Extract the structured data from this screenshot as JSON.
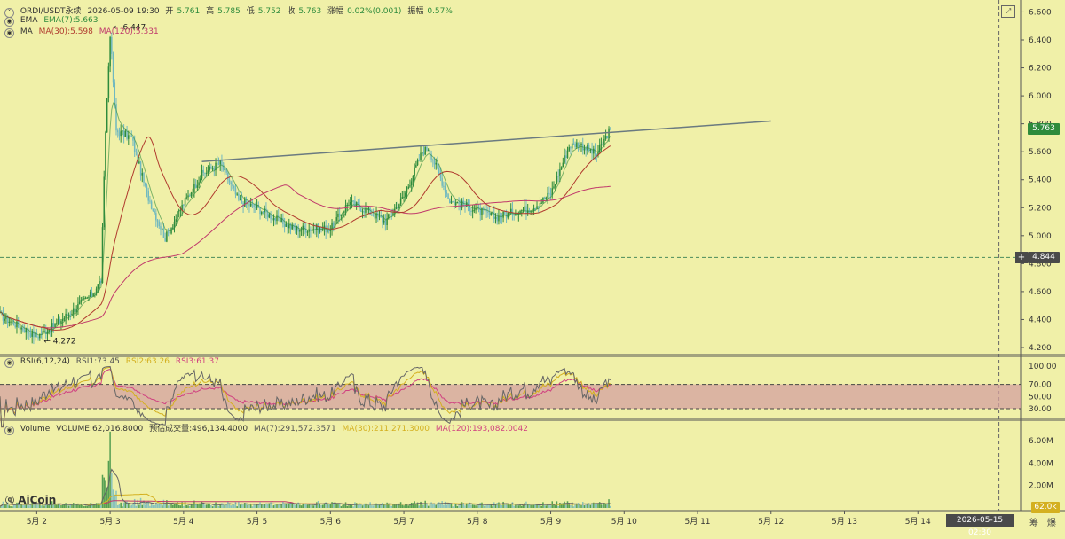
{
  "header": {
    "symbol": "ORDI/USDT永续",
    "datetime": "2026-05-09 19:30",
    "open_label": "开",
    "open": "5.761",
    "high_label": "高",
    "high": "5.785",
    "low_label": "低",
    "low": "5.752",
    "close_label": "收",
    "close": "5.763",
    "change_label": "涨幅",
    "change": "0.02%(0.001)",
    "amplitude_label": "振幅",
    "amplitude": "0.57%"
  },
  "ema_legend": {
    "name": "EMA",
    "ema7": "EMA(7):5.663"
  },
  "ma_legend": {
    "name": "MA",
    "ma30": "MA(30):5.598",
    "ma120": "MA(120):5.331"
  },
  "rsi_legend": {
    "name": "RSI(6,12,24)",
    "rsi1": "RSI1:73.45",
    "rsi2": "RSI2:63.26",
    "rsi3": "RSI3:61.37"
  },
  "volume_legend": {
    "name": "Volume",
    "volume": "VOLUME:62,016.8000",
    "estimated": "预估成交量:496,134.4000",
    "ma7": "MA(7):291,572.3571",
    "ma30": "MA(30):211,271.3000",
    "ma120": "MA(120):193,082.0042"
  },
  "price_axis_ticks": [
    "6.600",
    "6.400",
    "6.200",
    "6.000",
    "5.800",
    "5.600",
    "5.400",
    "5.200",
    "5.000",
    "4.800",
    "4.600",
    "4.400",
    "4.200"
  ],
  "rsi_axis_ticks": [
    "100.00",
    "70.00",
    "50.00",
    "30.00"
  ],
  "volume_axis_ticks": [
    "6.00M",
    "4.00M",
    "2.00M"
  ],
  "current_price_tag": "5.763",
  "crosshair_price_tag": "4.844",
  "volume_tag": "62.0k",
  "x_axis_labels": [
    "5月 2",
    "5月 3",
    "5月 4",
    "5月 5",
    "5月 6",
    "5月 7",
    "5月 8",
    "5月 9",
    "5月 10",
    "5月 11",
    "5月 12",
    "5月 13",
    "5月 14"
  ],
  "crosshair_time": "2026-05-15 02:30",
  "annotations": {
    "high_marker": "6.447",
    "low_marker": "4.272"
  },
  "footer_buttons": [
    "筹",
    "爆"
  ],
  "logo": "AiCoin",
  "colors": {
    "background": "#f0f0a8",
    "up_candle": "#2e8b3c",
    "down_candle": "#6fb8c0",
    "ema7": "#2e8b3c",
    "ma30": "#b03a2e",
    "ma120": "#c0396b",
    "rsi1": "#666666",
    "rsi2": "#d4b020",
    "rsi3": "#d04080",
    "rsi_band": "#d4a0a0",
    "trendline": "#6a7a80",
    "current_price": "#2e8b3c",
    "crosshair_tag": "#4a4a4a"
  },
  "chart_data": {
    "type": "candlestick",
    "interval": "30m",
    "x_range": [
      "2026-05-01 12:00",
      "2026-05-15 09:00"
    ],
    "y_range": [
      4.1,
      6.7
    ],
    "y_scale": "linear",
    "price_path_keypoints": [
      [
        "2026-05-01 12:00",
        4.43
      ],
      [
        "2026-05-02 00:00",
        4.28
      ],
      [
        "2026-05-02 06:00",
        4.36
      ],
      [
        "2026-05-02 18:00",
        4.58
      ],
      [
        "2026-05-02 21:00",
        4.68
      ],
      [
        "2026-05-02 22:30",
        5.75
      ],
      [
        "2026-05-03 00:00",
        6.447
      ],
      [
        "2026-05-03 02:00",
        5.75
      ],
      [
        "2026-05-03 07:00",
        5.7
      ],
      [
        "2026-05-03 12:00",
        5.3
      ],
      [
        "2026-05-03 18:00",
        4.98
      ],
      [
        "2026-05-04 00:00",
        5.23
      ],
      [
        "2026-05-04 06:00",
        5.44
      ],
      [
        "2026-05-04 12:00",
        5.52
      ],
      [
        "2026-05-04 18:00",
        5.25
      ],
      [
        "2026-05-05 00:00",
        5.2
      ],
      [
        "2026-05-05 06:00",
        5.12
      ],
      [
        "2026-05-05 12:00",
        5.05
      ],
      [
        "2026-05-06 00:00",
        5.05
      ],
      [
        "2026-05-06 06:00",
        5.24
      ],
      [
        "2026-05-06 12:00",
        5.18
      ],
      [
        "2026-05-06 18:00",
        5.1
      ],
      [
        "2026-05-07 00:00",
        5.28
      ],
      [
        "2026-05-07 06:00",
        5.6
      ],
      [
        "2026-05-07 08:00",
        5.63
      ],
      [
        "2026-05-07 15:00",
        5.25
      ],
      [
        "2026-05-07 22:00",
        5.2
      ],
      [
        "2026-05-08 06:00",
        5.13
      ],
      [
        "2026-05-08 12:00",
        5.17
      ],
      [
        "2026-05-08 18:00",
        5.2
      ],
      [
        "2026-05-09 00:00",
        5.3
      ],
      [
        "2026-05-09 06:00",
        5.64
      ],
      [
        "2026-05-09 09:00",
        5.66
      ],
      [
        "2026-05-09 15:00",
        5.58
      ],
      [
        "2026-05-09 19:30",
        5.763
      ]
    ],
    "recent_high": 6.447,
    "recent_low": 4.272,
    "last": {
      "open": 5.761,
      "high": 5.785,
      "low": 5.752,
      "close": 5.763
    },
    "indicators": {
      "ema7": 5.663,
      "ma30": 5.598,
      "ma120": 5.331
    },
    "rsi": {
      "rsi1": 73.45,
      "rsi2": 63.26,
      "rsi3": 61.37,
      "band": [
        30,
        70
      ],
      "range": [
        0,
        100
      ]
    },
    "volume": {
      "last": 62016.8,
      "estimated": 496134.4,
      "ma7": 291572.3571,
      "ma30": 211271.3,
      "ma120": 193082.0042,
      "peak": 6800000,
      "range": [
        0,
        7500000
      ]
    },
    "trendline": {
      "from": [
        "2026-05-04 06:00",
        5.53
      ],
      "to": [
        "2026-05-12 00:00",
        5.82
      ]
    },
    "guide_lines": [
      5.763,
      4.844
    ],
    "crosshair_x": "2026-05-15 02:30"
  }
}
